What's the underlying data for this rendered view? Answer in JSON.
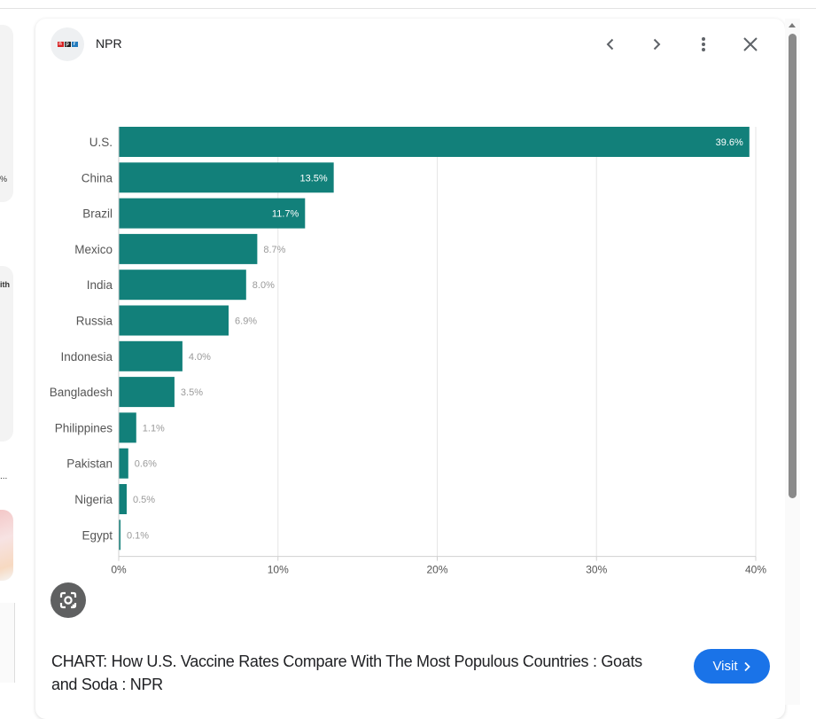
{
  "source": {
    "name": "NPR",
    "logo_letters": [
      "n",
      "p",
      "r"
    ],
    "logo_colors": [
      "#d62021",
      "#222222",
      "#237bbd"
    ]
  },
  "header": {
    "icons": [
      "chevron-left-icon",
      "chevron-right-icon",
      "more-vert-icon",
      "close-icon"
    ]
  },
  "left_strip": {
    "snippet1": "%",
    "snippet2": "ith",
    "snippet3": "..."
  },
  "caption": "CHART: How U.S. Vaccine Rates Compare With The Most Populous Countries : Goats and Soda : NPR",
  "visit_button": {
    "label": "Visit",
    "icon": "chevron-right-icon"
  },
  "colors": {
    "bar": "#12807a",
    "accent": "#1a73e8",
    "grid": "#e6e6e6",
    "value_label": "#9a9a9a",
    "category_label": "#555555"
  },
  "chart_data": {
    "type": "bar",
    "orientation": "horizontal",
    "title": "",
    "xlabel": "",
    "ylabel": "",
    "categories": [
      "U.S.",
      "China",
      "Brazil",
      "Mexico",
      "India",
      "Russia",
      "Indonesia",
      "Bangladesh",
      "Philippines",
      "Pakistan",
      "Nigeria",
      "Egypt"
    ],
    "values": [
      39.6,
      13.5,
      11.7,
      8.7,
      8.0,
      6.9,
      4.0,
      3.5,
      1.1,
      0.6,
      0.5,
      0.1
    ],
    "value_labels": [
      "39.6%",
      "13.5%",
      "11.7%",
      "8.7%",
      "8.0%",
      "6.9%",
      "4.0%",
      "3.5%",
      "1.1%",
      "0.6%",
      "0.5%",
      "0.1%"
    ],
    "xlim": [
      0,
      40
    ],
    "xticks": [
      0,
      10,
      20,
      30,
      40
    ],
    "xtick_labels": [
      "0%",
      "10%",
      "20%",
      "30%",
      "40%"
    ],
    "grid": true
  }
}
